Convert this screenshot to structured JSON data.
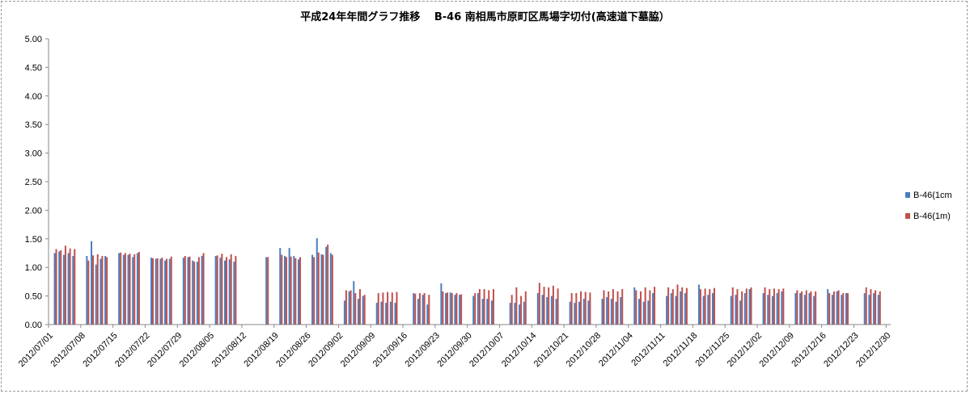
{
  "chart_data": {
    "type": "bar",
    "title": "平成24年年間グラフ推移　 B-46 南相馬市原町区馬場字切付(高速道下墓脇）",
    "ylim": [
      0,
      5
    ],
    "yticks": [
      "0.00",
      "0.50",
      "1.00",
      "1.50",
      "2.00",
      "2.50",
      "3.00",
      "3.50",
      "4.00",
      "4.50",
      "5.00"
    ],
    "grid": false,
    "legend_position": "right",
    "x_start": "2012/07/01",
    "x_end": "2012/12/31",
    "xtick_labels": [
      "2012/07/01",
      "2012/07/08",
      "2012/07/15",
      "2012/07/22",
      "2012/07/29",
      "2012/08/05",
      "2012/08/12",
      "2012/08/19",
      "2012/08/26",
      "2012/09/02",
      "2012/09/09",
      "2012/09/16",
      "2012/09/23",
      "2012/09/30",
      "2012/10/07",
      "2012/10/14",
      "2012/10/21",
      "2012/10/28",
      "2012/11/04",
      "2012/11/11",
      "2012/11/18",
      "2012/11/25",
      "2012/12/02",
      "2012/12/09",
      "2012/12/16",
      "2012/12/23",
      "2012/12/30"
    ],
    "series": [
      {
        "name": "B-46(1cm",
        "color": "#4a7ebb"
      },
      {
        "name": "B-46(1m)",
        "color": "#c0504d"
      }
    ],
    "records": [
      [
        "2012/07/02",
        1.25,
        1.32
      ],
      [
        "2012/07/03",
        1.28,
        1.3
      ],
      [
        "2012/07/04",
        1.22,
        1.38
      ],
      [
        "2012/07/05",
        1.25,
        1.33
      ],
      [
        "2012/07/06",
        1.2,
        1.32
      ],
      [
        "2012/07/09",
        1.2,
        1.12
      ],
      [
        "2012/07/10",
        1.46,
        1.21
      ],
      [
        "2012/07/11",
        1.05,
        1.23
      ],
      [
        "2012/07/12",
        1.15,
        1.2
      ],
      [
        "2012/07/13",
        1.2,
        1.18
      ],
      [
        "2012/07/16",
        1.25,
        1.26
      ],
      [
        "2012/07/17",
        1.22,
        1.25
      ],
      [
        "2012/07/18",
        1.22,
        1.24
      ],
      [
        "2012/07/19",
        1.18,
        1.23
      ],
      [
        "2012/07/20",
        1.25,
        1.27
      ],
      [
        "2012/07/23",
        1.17,
        1.16
      ],
      [
        "2012/07/24",
        1.15,
        1.16
      ],
      [
        "2012/07/25",
        1.15,
        1.17
      ],
      [
        "2012/07/26",
        1.12,
        1.15
      ],
      [
        "2012/07/27",
        1.15,
        1.19
      ],
      [
        "2012/07/30",
        1.17,
        1.2
      ],
      [
        "2012/07/31",
        1.18,
        1.19
      ],
      [
        "2012/08/01",
        1.12,
        1.1
      ],
      [
        "2012/08/02",
        1.1,
        1.18
      ],
      [
        "2012/08/03",
        1.2,
        1.25
      ],
      [
        "2012/08/06",
        1.2,
        1.21
      ],
      [
        "2012/08/07",
        1.17,
        1.24
      ],
      [
        "2012/08/08",
        1.12,
        1.18
      ],
      [
        "2012/08/09",
        1.14,
        1.23
      ],
      [
        "2012/08/10",
        1.1,
        1.2
      ],
      [
        "2012/08/17",
        1.18,
        1.18
      ],
      [
        "2012/08/20",
        1.34,
        1.22
      ],
      [
        "2012/08/21",
        1.2,
        1.18
      ],
      [
        "2012/08/22",
        1.34,
        1.19
      ],
      [
        "2012/08/23",
        1.2,
        1.16
      ],
      [
        "2012/08/24",
        1.14,
        1.18
      ],
      [
        "2012/08/27",
        1.22,
        1.18
      ],
      [
        "2012/08/28",
        1.51,
        1.26
      ],
      [
        "2012/08/29",
        1.23,
        1.22
      ],
      [
        "2012/08/30",
        1.36,
        1.4
      ],
      [
        "2012/08/31",
        1.25,
        1.22
      ],
      [
        "2012/09/03",
        0.42,
        0.6
      ],
      [
        "2012/09/04",
        0.58,
        0.6
      ],
      [
        "2012/09/05",
        0.76,
        0.55
      ],
      [
        "2012/09/06",
        0.45,
        0.62
      ],
      [
        "2012/09/07",
        0.5,
        0.52
      ],
      [
        "2012/09/10",
        0.38,
        0.55
      ],
      [
        "2012/09/11",
        0.4,
        0.56
      ],
      [
        "2012/09/12",
        0.38,
        0.57
      ],
      [
        "2012/09/13",
        0.4,
        0.56
      ],
      [
        "2012/09/14",
        0.38,
        0.57
      ],
      [
        "2012/09/18",
        0.55,
        0.54
      ],
      [
        "2012/09/19",
        0.45,
        0.55
      ],
      [
        "2012/09/20",
        0.52,
        0.55
      ],
      [
        "2012/09/21",
        0.35,
        0.52
      ],
      [
        "2012/09/24",
        0.72,
        0.58
      ],
      [
        "2012/09/25",
        0.55,
        0.56
      ],
      [
        "2012/09/26",
        0.56,
        0.55
      ],
      [
        "2012/09/27",
        0.52,
        0.55
      ],
      [
        "2012/09/28",
        0.52,
        0.53
      ],
      [
        "2012/10/01",
        0.5,
        0.55
      ],
      [
        "2012/10/02",
        0.55,
        0.62
      ],
      [
        "2012/10/03",
        0.45,
        0.62
      ],
      [
        "2012/10/04",
        0.45,
        0.6
      ],
      [
        "2012/10/05",
        0.42,
        0.62
      ],
      [
        "2012/10/09",
        0.38,
        0.52
      ],
      [
        "2012/10/10",
        0.38,
        0.65
      ],
      [
        "2012/10/11",
        0.35,
        0.5
      ],
      [
        "2012/10/12",
        0.4,
        0.58
      ],
      [
        "2012/10/15",
        0.55,
        0.73
      ],
      [
        "2012/10/16",
        0.52,
        0.66
      ],
      [
        "2012/10/17",
        0.48,
        0.65
      ],
      [
        "2012/10/18",
        0.5,
        0.68
      ],
      [
        "2012/10/19",
        0.45,
        0.63
      ],
      [
        "2012/10/22",
        0.4,
        0.55
      ],
      [
        "2012/10/23",
        0.38,
        0.55
      ],
      [
        "2012/10/24",
        0.4,
        0.58
      ],
      [
        "2012/10/25",
        0.45,
        0.57
      ],
      [
        "2012/10/26",
        0.42,
        0.56
      ],
      [
        "2012/10/29",
        0.45,
        0.6
      ],
      [
        "2012/10/30",
        0.48,
        0.58
      ],
      [
        "2012/10/31",
        0.45,
        0.62
      ],
      [
        "2012/11/01",
        0.4,
        0.58
      ],
      [
        "2012/11/02",
        0.48,
        0.62
      ],
      [
        "2012/11/05",
        0.65,
        0.6
      ],
      [
        "2012/11/06",
        0.45,
        0.58
      ],
      [
        "2012/11/07",
        0.4,
        0.65
      ],
      [
        "2012/11/08",
        0.42,
        0.6
      ],
      [
        "2012/11/09",
        0.55,
        0.66
      ],
      [
        "2012/11/12",
        0.5,
        0.65
      ],
      [
        "2012/11/13",
        0.55,
        0.62
      ],
      [
        "2012/11/14",
        0.5,
        0.7
      ],
      [
        "2012/11/15",
        0.58,
        0.65
      ],
      [
        "2012/11/16",
        0.55,
        0.64
      ],
      [
        "2012/11/19",
        0.7,
        0.62
      ],
      [
        "2012/11/20",
        0.5,
        0.63
      ],
      [
        "2012/11/21",
        0.52,
        0.62
      ],
      [
        "2012/11/22",
        0.55,
        0.64
      ],
      [
        "2012/11/26",
        0.5,
        0.65
      ],
      [
        "2012/11/27",
        0.52,
        0.62
      ],
      [
        "2012/11/28",
        0.42,
        0.58
      ],
      [
        "2012/11/29",
        0.55,
        0.63
      ],
      [
        "2012/11/30",
        0.62,
        0.65
      ],
      [
        "2012/12/03",
        0.55,
        0.65
      ],
      [
        "2012/12/04",
        0.52,
        0.62
      ],
      [
        "2012/12/05",
        0.5,
        0.63
      ],
      [
        "2012/12/06",
        0.55,
        0.62
      ],
      [
        "2012/12/07",
        0.58,
        0.63
      ],
      [
        "2012/12/10",
        0.55,
        0.6
      ],
      [
        "2012/12/11",
        0.55,
        0.58
      ],
      [
        "2012/12/12",
        0.52,
        0.6
      ],
      [
        "2012/12/13",
        0.55,
        0.58
      ],
      [
        "2012/12/14",
        0.5,
        0.58
      ],
      [
        "2012/12/17",
        0.62,
        0.55
      ],
      [
        "2012/12/18",
        0.52,
        0.58
      ],
      [
        "2012/12/19",
        0.58,
        0.6
      ],
      [
        "2012/12/20",
        0.52,
        0.55
      ],
      [
        "2012/12/21",
        0.55,
        0.55
      ],
      [
        "2012/12/25",
        0.55,
        0.65
      ],
      [
        "2012/12/26",
        0.52,
        0.62
      ],
      [
        "2012/12/27",
        0.55,
        0.6
      ],
      [
        "2012/12/28",
        0.52,
        0.58
      ]
    ]
  }
}
